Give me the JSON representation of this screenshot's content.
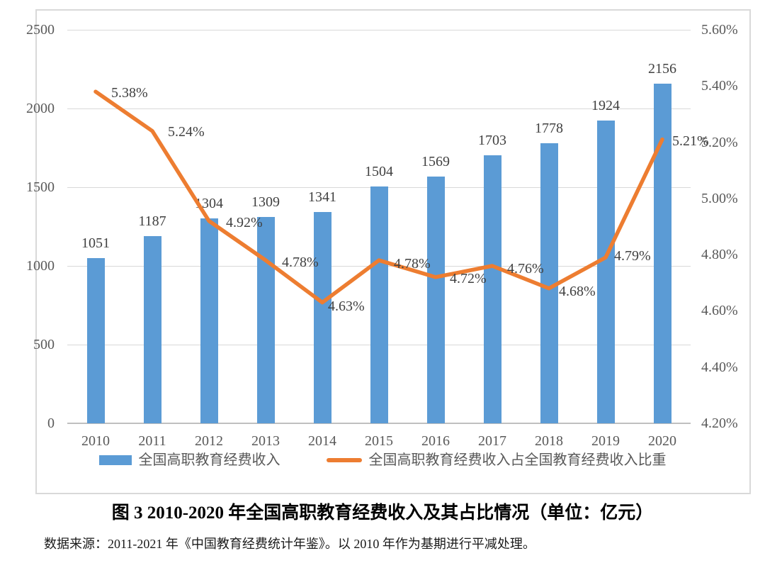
{
  "page": {
    "title": "图 3  2010-2020 年全国高职教育经费收入及其占比情况（单位：亿元）",
    "source_note": "数据来源：2011-2021 年《中国教育经费统计年鉴》。以 2010 年作为基期进行平减处理。"
  },
  "chart_data": {
    "type": "bar",
    "subtype": "combo-bar-line-dual-axis",
    "categories": [
      "2010",
      "2011",
      "2012",
      "2013",
      "2014",
      "2015",
      "2016",
      "2017",
      "2018",
      "2019",
      "2020"
    ],
    "series": [
      {
        "name": "全国高职教育经费收入",
        "type": "bar",
        "axis": "left",
        "color": "#5B9BD5",
        "values": [
          1051,
          1187,
          1304,
          1309,
          1341,
          1504,
          1569,
          1703,
          1778,
          1924,
          2156
        ],
        "value_labels": [
          "1051",
          "1187",
          "1304",
          "1309",
          "1341",
          "1504",
          "1569",
          "1703",
          "1778",
          "1924",
          "2156"
        ]
      },
      {
        "name": "全国高职教育经费收入占全国教育经费收入比重",
        "type": "line",
        "axis": "right",
        "color": "#ED7D31",
        "values": [
          5.38,
          5.24,
          4.92,
          4.78,
          4.63,
          4.78,
          4.72,
          4.76,
          4.68,
          4.79,
          5.21
        ],
        "value_labels": [
          "5.38%",
          "5.24%",
          "4.92%",
          "4.78%",
          "4.63%",
          "4.78%",
          "4.72%",
          "4.76%",
          "4.68%",
          "4.79%",
          "5.21%"
        ],
        "label_offsets": [
          [
            22,
            2
          ],
          [
            22,
            1
          ],
          [
            24,
            2
          ],
          [
            23,
            3
          ],
          [
            8,
            5
          ],
          [
            21,
            5
          ],
          [
            20,
            2
          ],
          [
            21,
            4
          ],
          [
            14,
            4
          ],
          [
            12,
            -2
          ],
          [
            14,
            2
          ]
        ]
      }
    ],
    "left_axis": {
      "min": 0,
      "max": 2500,
      "tick_step": 500,
      "ticks": [
        "0",
        "500",
        "1000",
        "1500",
        "2000",
        "2500"
      ]
    },
    "right_axis": {
      "min": 4.2,
      "max": 5.6,
      "tick_step": 0.2,
      "ticks": [
        "4.20%",
        "4.40%",
        "4.60%",
        "4.80%",
        "5.00%",
        "5.20%",
        "5.40%",
        "5.60%"
      ]
    },
    "grid": "horizontal",
    "legend_position": "bottom",
    "colors": {
      "bar": "#5B9BD5",
      "line": "#ED7D31",
      "gridline": "#D9D9D9",
      "axis_line": "#BFBFBF",
      "tick_text": "#595959",
      "data_label_text": "#404040",
      "frame_border": "#D9D9D9"
    }
  }
}
